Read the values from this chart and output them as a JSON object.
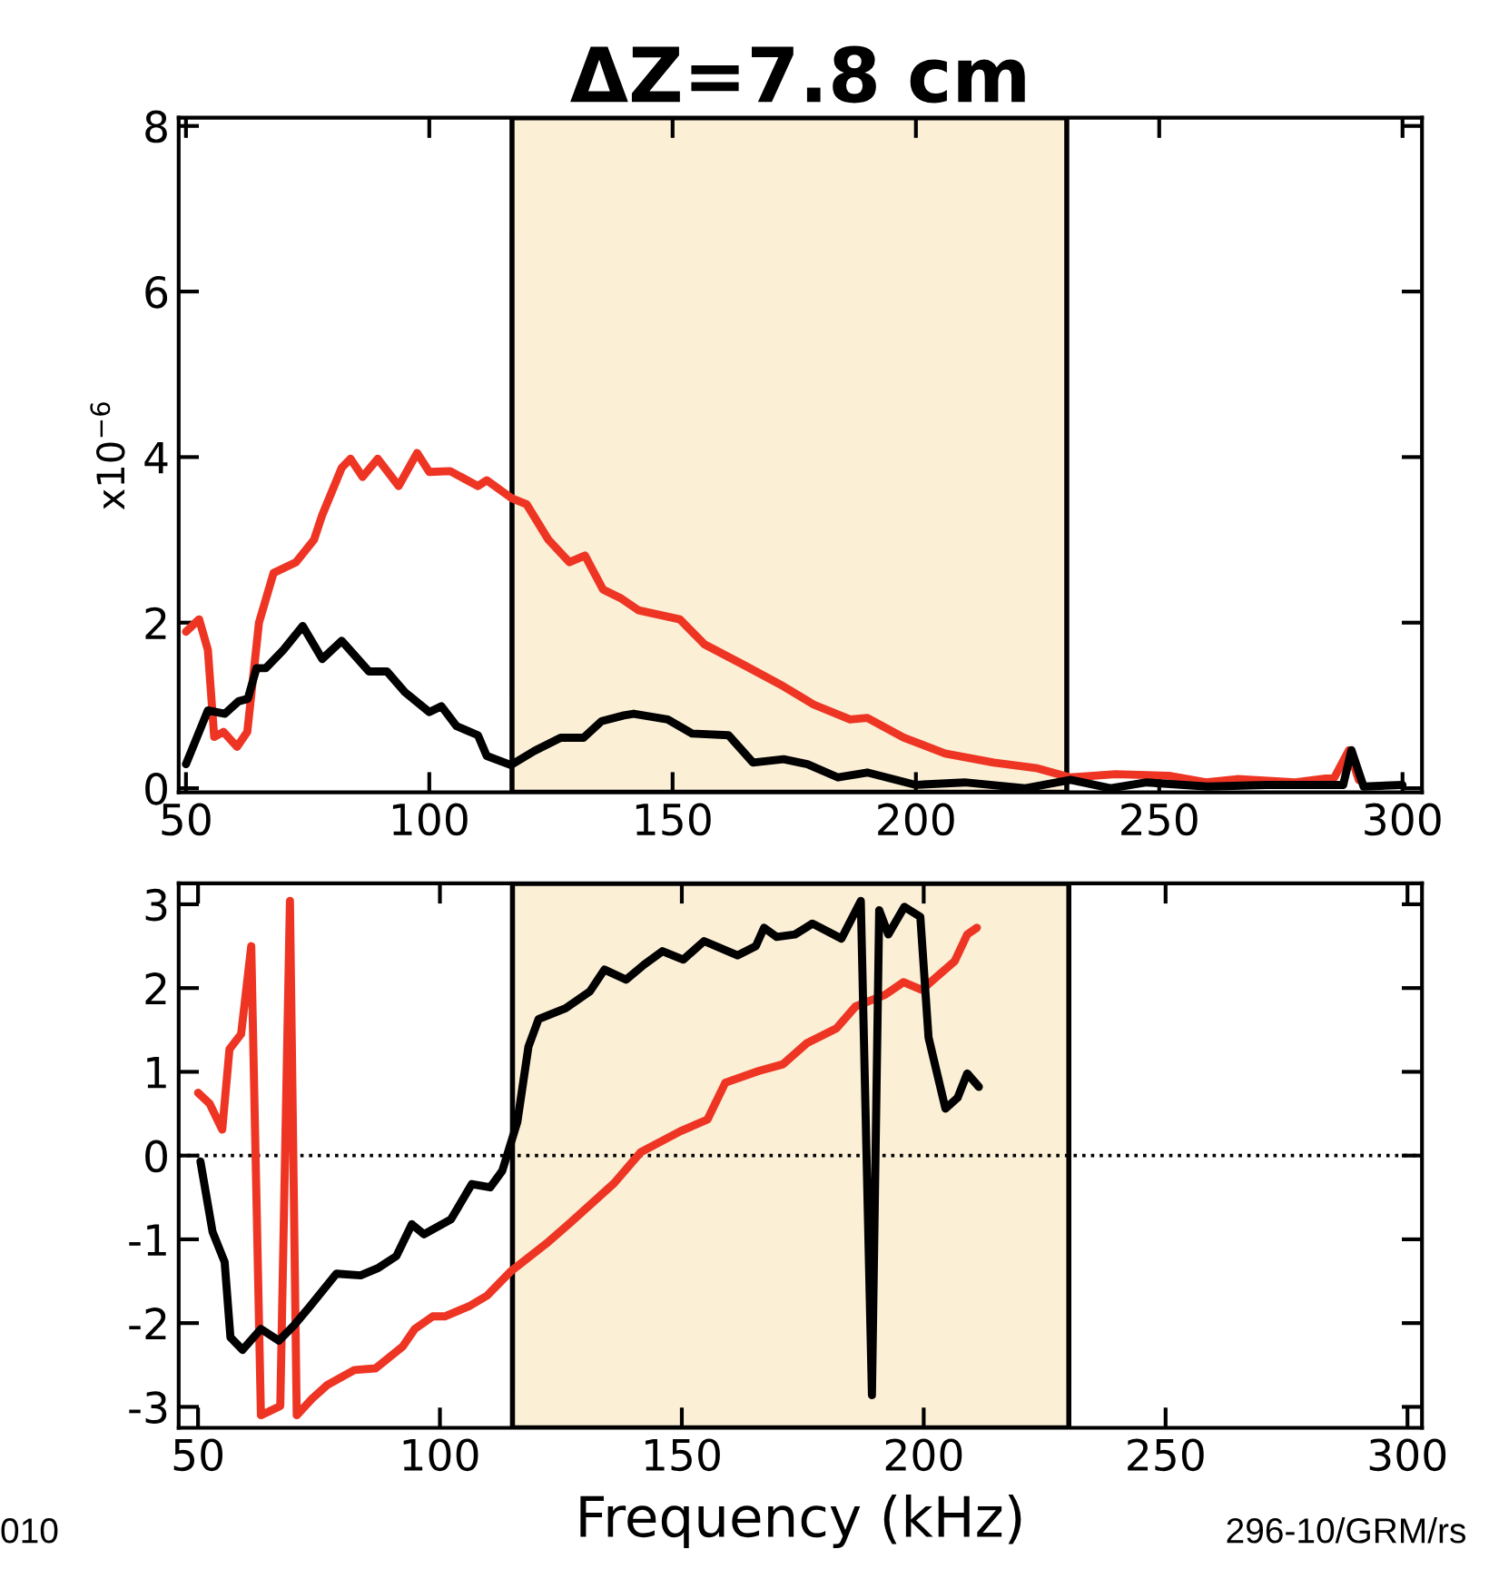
{
  "chart_data": [
    {
      "type": "line",
      "title": "ΔZ=7.8 cm",
      "ylabel": "x10$^{−6}$",
      "xlim": [
        48.5,
        304
      ],
      "xticks": [
        50,
        100,
        150,
        200,
        250,
        300
      ],
      "ylim": [
        -0.05,
        8.1
      ],
      "yticks": [
        0,
        2,
        4,
        6,
        8
      ],
      "grid": false,
      "legend": false,
      "marker": "none",
      "line_style": "solid",
      "bands": [
        {
          "axis": "x",
          "from": 117,
          "to": 231,
          "color": "#fbefd6"
        }
      ],
      "series": [
        {
          "color": "#ee3524",
          "x": [
            50,
            52.7,
            54.5,
            55.8,
            57.7,
            60.5,
            62.6,
            65,
            68,
            72.6,
            76.3,
            78,
            82,
            83.8,
            86.3,
            89.4,
            93.7,
            97.5,
            100,
            104.3,
            110,
            111.8,
            117,
            120,
            124.5,
            128.8,
            132,
            135.7,
            139.5,
            143,
            151.5,
            156.5,
            164.6,
            172.8,
            179,
            186.5,
            190,
            197.5,
            206,
            216,
            225,
            231.7,
            241,
            252,
            259.6,
            266,
            278,
            286,
            289,
            291
          ],
          "values": [
            1.89,
            2.04,
            1.67,
            0.62,
            0.68,
            0.5,
            0.68,
            2.0,
            2.6,
            2.73,
            3.0,
            3.3,
            3.87,
            3.98,
            3.76,
            3.98,
            3.65,
            4.05,
            3.82,
            3.83,
            3.65,
            3.72,
            3.5,
            3.43,
            3.0,
            2.73,
            2.81,
            2.4,
            2.29,
            2.15,
            2.04,
            1.74,
            1.49,
            1.23,
            1.01,
            0.83,
            0.85,
            0.61,
            0.42,
            0.31,
            0.24,
            0.13,
            0.17,
            0.15,
            0.07,
            0.11,
            0.07,
            0.13,
            0.46,
            0.1
          ]
        },
        {
          "color": "#000000",
          "x": [
            50,
            54.5,
            58,
            60.8,
            62.7,
            64.5,
            66.4,
            70,
            74,
            78,
            82,
            87.6,
            91.3,
            95,
            100,
            102.5,
            105.6,
            110,
            111.8,
            116.8,
            121.6,
            127,
            131.7,
            135.4,
            140,
            142,
            149,
            154,
            161.5,
            166.5,
            172.8,
            177.7,
            184,
            190,
            200,
            210,
            222.5,
            231.8,
            240,
            247.4,
            260,
            272,
            287.8,
            289.5,
            292,
            300
          ],
          "values": [
            0.29,
            0.94,
            0.9,
            1.05,
            1.08,
            1.45,
            1.45,
            1.67,
            1.96,
            1.56,
            1.78,
            1.41,
            1.41,
            1.16,
            0.92,
            0.99,
            0.75,
            0.64,
            0.39,
            0.28,
            0.45,
            0.61,
            0.61,
            0.81,
            0.88,
            0.9,
            0.83,
            0.66,
            0.64,
            0.31,
            0.35,
            0.29,
            0.13,
            0.19,
            0.04,
            0.07,
            0.0,
            0.1,
            0.0,
            0.07,
            0.02,
            0.04,
            0.04,
            0.46,
            0.02,
            0.04
          ]
        }
      ]
    },
    {
      "type": "line",
      "xlabel": "Frequency (kHz)",
      "xlim": [
        46,
        303
      ],
      "xticks": [
        50,
        100,
        150,
        200,
        250,
        300
      ],
      "ylim": [
        -3.25,
        3.25
      ],
      "yticks": [
        {
          "value": -3,
          "label": "-3"
        },
        {
          "value": -2,
          "label": "-2"
        },
        {
          "value": -1,
          "label": "-1"
        },
        0,
        1,
        2,
        3
      ],
      "grid": false,
      "legend": false,
      "marker": "none",
      "line_style": "solid",
      "bands": [
        {
          "axis": "x",
          "from": 115,
          "to": 230,
          "color": "#fbefd6"
        }
      ],
      "ref_lines": [
        {
          "axis": "y",
          "value": 0,
          "line_style": "dotted",
          "color": "#000000"
        }
      ],
      "annotations": [
        "010",
        "296-10/GRM/rs"
      ],
      "series": [
        {
          "color": "#ee3524",
          "x": [
            50,
            52.4,
            55,
            56.5,
            58.9,
            61,
            63,
            67,
            69,
            70.4,
            73.6,
            76.7,
            82.3,
            86.7,
            92.3,
            94.8,
            98.5,
            101,
            106,
            109.8,
            114.7,
            122,
            127,
            136,
            141.5,
            149.7,
            155.3,
            159,
            165.9,
            170.9,
            175.8,
            182,
            185.9,
            192,
            195.8,
            199.6,
            206.4,
            209,
            211
          ],
          "values": [
            0.75,
            0.62,
            0.31,
            1.27,
            1.45,
            2.5,
            -3.1,
            -2.99,
            3.04,
            -3.1,
            -2.9,
            -2.74,
            -2.56,
            -2.54,
            -2.28,
            -2.07,
            -1.92,
            -1.92,
            -1.8,
            -1.67,
            -1.38,
            -1.05,
            -0.8,
            -0.33,
            0.04,
            0.29,
            0.43,
            0.87,
            1.01,
            1.09,
            1.34,
            1.52,
            1.78,
            1.92,
            2.07,
            1.98,
            2.32,
            2.64,
            2.72
          ]
        },
        {
          "color": "#000000",
          "x": [
            50.5,
            53,
            55.5,
            56.7,
            59.2,
            63,
            66.7,
            69.8,
            73,
            78.6,
            83.6,
            87.3,
            91,
            94.2,
            96.7,
            102.3,
            106.6,
            110.4,
            112.9,
            116,
            118.3,
            120.4,
            126,
            131,
            134,
            138.5,
            142.2,
            146,
            150.3,
            154.6,
            161.5,
            165.3,
            167,
            169.6,
            173.4,
            177,
            183,
            187,
            189.3,
            190.8,
            192.7,
            196,
            199.3,
            201,
            204.5,
            207,
            209,
            211.4
          ],
          "values": [
            -0.07,
            -0.91,
            -1.27,
            -2.17,
            -2.32,
            -2.07,
            -2.21,
            -2.03,
            -1.81,
            -1.41,
            -1.43,
            -1.34,
            -1.2,
            -0.82,
            -0.94,
            -0.76,
            -0.34,
            -0.38,
            -0.18,
            0.4,
            1.3,
            1.63,
            1.76,
            1.96,
            2.22,
            2.1,
            2.28,
            2.44,
            2.34,
            2.56,
            2.39,
            2.5,
            2.72,
            2.61,
            2.64,
            2.77,
            2.59,
            3.04,
            -2.86,
            2.93,
            2.64,
            2.97,
            2.85,
            1.41,
            0.56,
            0.69,
            0.98,
            0.82
          ]
        }
      ]
    }
  ]
}
